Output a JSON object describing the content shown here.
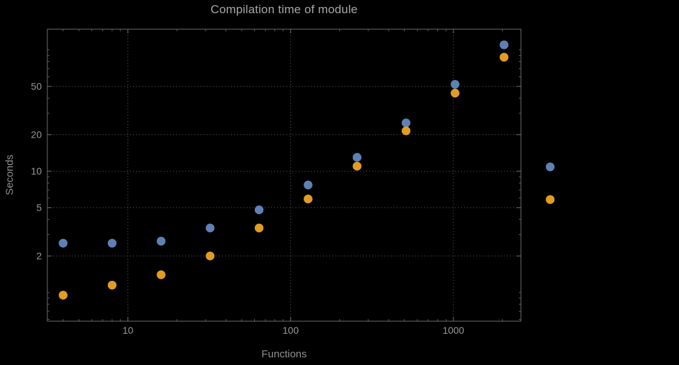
{
  "colors": {
    "background": "#000000",
    "frame": "#6e6e6e",
    "grid": "#585858",
    "text": "#989898",
    "series_blue": "#5e81b5",
    "series_orange": "#e19c24"
  },
  "chart_data": {
    "type": "scatter",
    "title": "Compilation time of module",
    "xlabel": "Functions",
    "ylabel": "Seconds",
    "x_scale": "log",
    "y_scale": "log",
    "x": [
      4,
      8,
      16,
      32,
      64,
      128,
      256,
      512,
      1024,
      2048
    ],
    "series": [
      {
        "name": "blue",
        "color": "#5e81b5",
        "values": [
          2.55,
          2.55,
          2.65,
          3.4,
          4.8,
          7.7,
          13,
          25,
          52,
          110
        ]
      },
      {
        "name": "orange",
        "color": "#e19c24",
        "values": [
          0.95,
          1.15,
          1.4,
          2.0,
          3.4,
          5.9,
          11,
          21.5,
          44,
          87
        ]
      }
    ],
    "x_ticks": [
      10,
      100,
      1000
    ],
    "y_ticks": [
      2,
      5,
      10,
      20,
      50
    ],
    "xlim": [
      3.2,
      2600
    ],
    "ylim": [
      0.58,
      148
    ],
    "grid": "dotted",
    "legend_position": "right-outside",
    "legend": [
      {
        "color": "#5e81b5",
        "label": ""
      },
      {
        "color": "#e19c24",
        "label": ""
      }
    ]
  }
}
